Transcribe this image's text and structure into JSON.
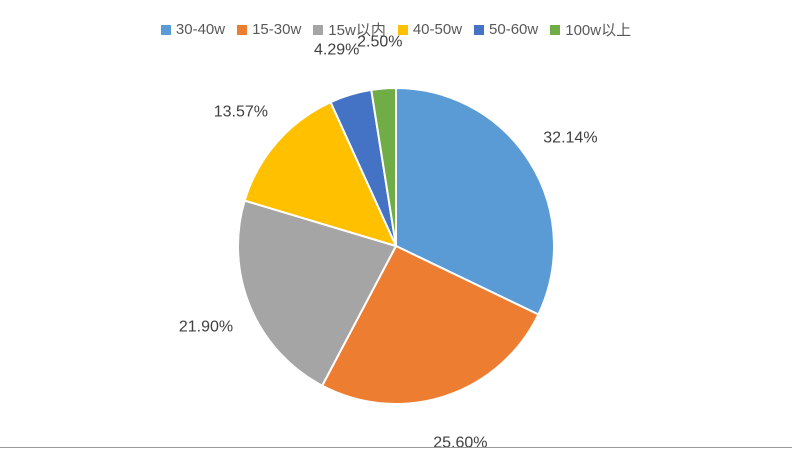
{
  "chart_data": {
    "type": "pie",
    "title": "",
    "categories": [
      "30-40w",
      "15-30w",
      "15w以内",
      "40-50w",
      "50-60w",
      "100w以上"
    ],
    "values": [
      32.14,
      25.6,
      21.9,
      13.57,
      4.29,
      2.5
    ],
    "data_labels": [
      "32.14%",
      "25.60%",
      "21.90%",
      "13.57%",
      "4.29%",
      "2.50%"
    ],
    "colors": [
      "#5B9BD5",
      "#ED7D31",
      "#A5A5A5",
      "#FFC000",
      "#4472C4",
      "#70AD47"
    ],
    "legend_position": "top",
    "start_angle": "12 o'clock",
    "direction": "clockwise"
  }
}
